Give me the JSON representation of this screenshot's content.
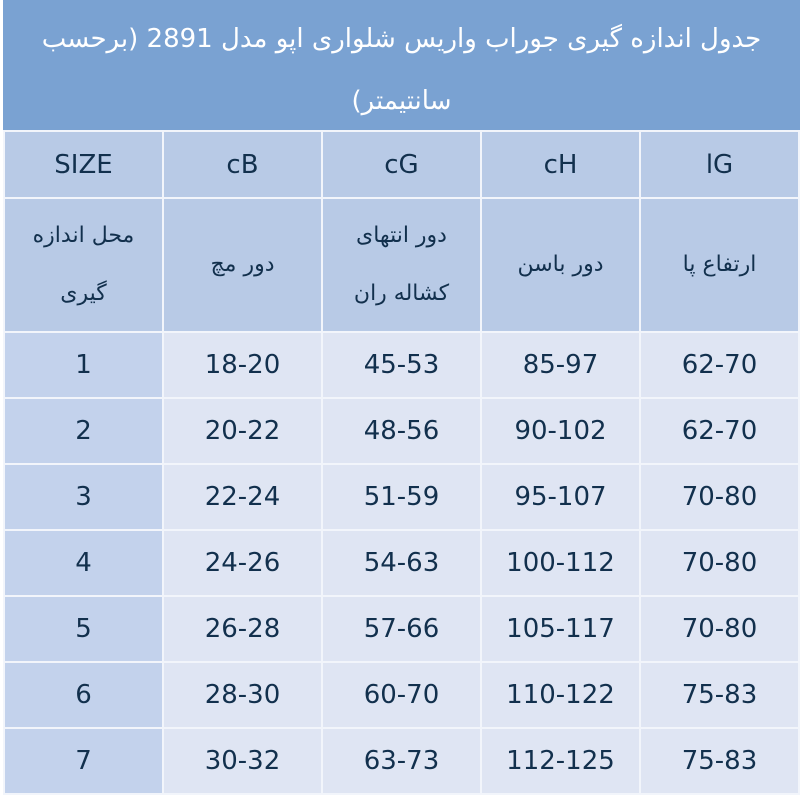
{
  "title": "جدول اندازه گیری جوراب واریس شلواری اپو مدل 2891 (برحسب سانتیمتر)",
  "headers": [
    "SIZE",
    "cB",
    "cG",
    "cH",
    "lG"
  ],
  "descriptions": [
    "محل اندازه گیری",
    "دور مچ",
    "دور انتهای کشاله ران",
    "دور باسن",
    "ارتفاع پا"
  ],
  "rows": [
    [
      "1",
      "18-20",
      "45-53",
      "85-97",
      "62-70"
    ],
    [
      "2",
      "20-22",
      "48-56",
      "90-102",
      "62-70"
    ],
    [
      "3",
      "22-24",
      "51-59",
      "95-107",
      "70-80"
    ],
    [
      "4",
      "24-26",
      "54-63",
      "100-112",
      "70-80"
    ],
    [
      "5",
      "26-28",
      "57-66",
      "105-117",
      "70-80"
    ],
    [
      "6",
      "28-30",
      "60-70",
      "110-122",
      "75-83"
    ],
    [
      "7",
      "30-32",
      "63-73",
      "112-125",
      "75-83"
    ]
  ],
  "colors": {
    "title_bg": "#7aa2d2",
    "header_bg": "#b8cae6",
    "size_col_bg": "#c3d2ec",
    "cell_bg": "#dfe5f3",
    "text": "#12304d"
  }
}
